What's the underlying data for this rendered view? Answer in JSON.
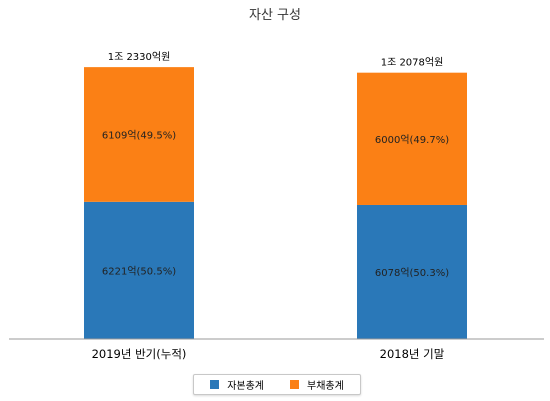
{
  "chart_data": {
    "type": "bar",
    "stacked": true,
    "title": "자산 구성",
    "categories": [
      "2019년 반기(누적)",
      "2018년 기말"
    ],
    "totals": [
      "1조 2330억원",
      "1조 2078억원"
    ],
    "series": [
      {
        "name": "자본총계",
        "color": "#2a78b8",
        "values": [
          6221,
          6078
        ],
        "labels": [
          "6221억(50.5%)",
          "6078억(50.3%)"
        ]
      },
      {
        "name": "부채총계",
        "color": "#fb8015",
        "values": [
          6109,
          6000
        ],
        "labels": [
          "6109억(49.5%)",
          "6000억(49.7%)"
        ]
      }
    ],
    "legend_position": "bottom"
  }
}
